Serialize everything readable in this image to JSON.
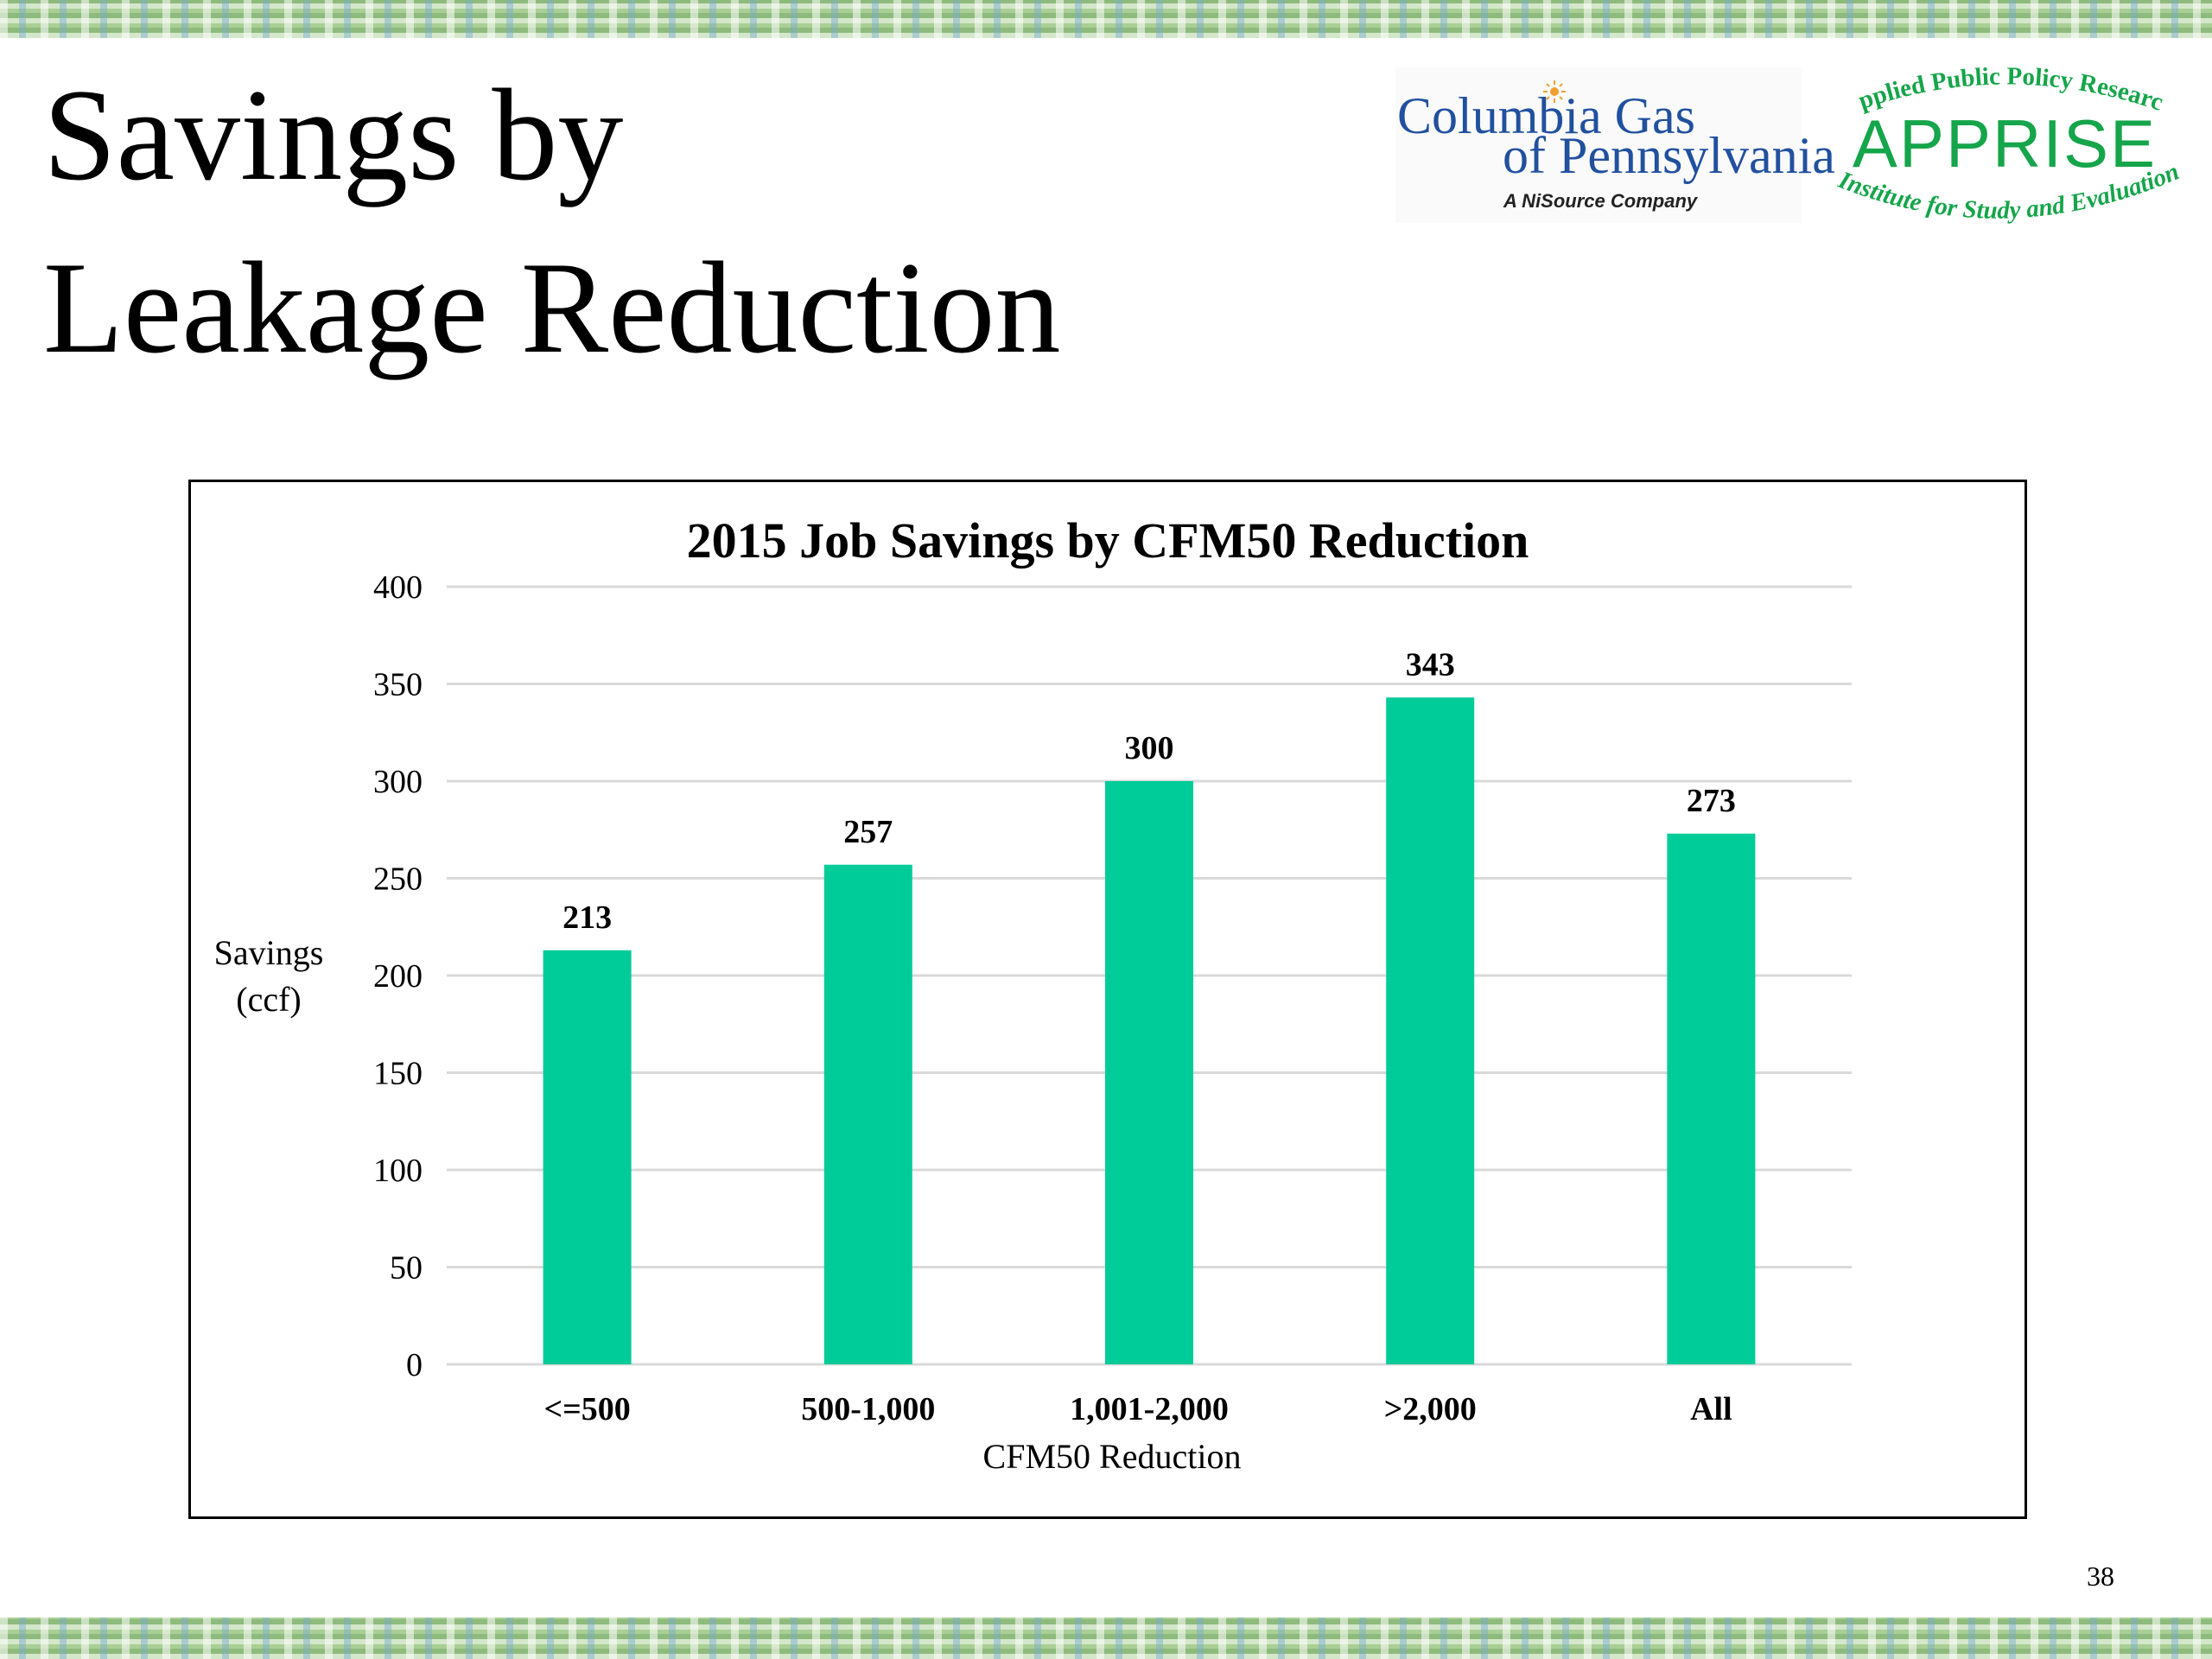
{
  "slide": {
    "title_line1": "Savings by",
    "title_line2": "Leakage Reduction",
    "page_number": "38"
  },
  "logos": {
    "columbia_line1": "Columbia Gas",
    "columbia_line2": "of Pennsylvania",
    "columbia_sub": "A NiSource Company",
    "apprise_word": "APPRISE",
    "apprise_arc_top": "Applied Public Policy Research",
    "apprise_arc_bottom": "Institute for Study and Evaluation"
  },
  "colors": {
    "bar": "#00cc99",
    "gridline": "#d9d9d9",
    "columbia_blue": "#21509e",
    "apprise_green": "#15a54a"
  },
  "chart_data": {
    "type": "bar",
    "title": "2015 Job Savings by CFM50 Reduction",
    "xlabel": "CFM50 Reduction",
    "ylabel_line1": "Savings",
    "ylabel_line2": "(ccf)",
    "categories": [
      "<=500",
      "500-1,000",
      "1,001-2,000",
      ">2,000",
      "All"
    ],
    "values": [
      213,
      257,
      300,
      343,
      273
    ],
    "data_labels": [
      "213",
      "257",
      "300",
      "343",
      "273"
    ],
    "ylim": [
      0,
      400
    ],
    "yticks": [
      0,
      50,
      100,
      150,
      200,
      250,
      300,
      350,
      400
    ],
    "grid": true,
    "legend": "none"
  }
}
